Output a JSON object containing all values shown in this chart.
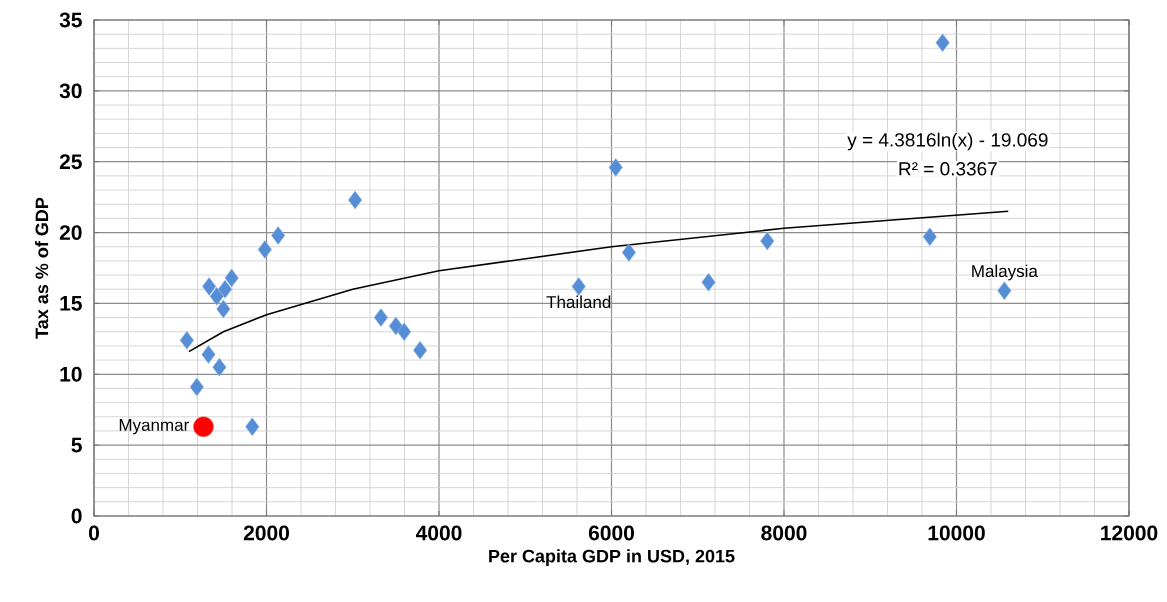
{
  "chart_data": {
    "type": "scatter",
    "xlabel": "Per Capita GDP in USD, 2015",
    "ylabel": "Tax as % of GDP",
    "xlim": [
      0,
      12000
    ],
    "ylim": [
      0,
      35
    ],
    "xticks": [
      0,
      2000,
      4000,
      6000,
      8000,
      10000,
      12000
    ],
    "yticks": [
      0,
      5,
      10,
      15,
      20,
      25,
      30,
      35
    ],
    "grid": true,
    "series": [
      {
        "marker": "diamond",
        "color": "#558ed5",
        "x": [
          3027,
          2135,
          1981,
          1596,
          1335,
          1519,
          1423,
          1500,
          1077,
          1327,
          1454,
          1192,
          1835,
          3327,
          3500,
          3596,
          3781,
          9839,
          6049,
          6202,
          7806,
          9691,
          5620,
          7125,
          10555
        ],
        "values": [
          22.3,
          19.8,
          18.8,
          16.8,
          16.2,
          16.0,
          15.5,
          14.6,
          12.4,
          11.4,
          10.5,
          9.1,
          6.3,
          14.0,
          13.4,
          13.0,
          11.7,
          33.4,
          24.6,
          18.6,
          19.4,
          19.7,
          16.2,
          16.5,
          15.9
        ]
      },
      {
        "marker": "circle",
        "color": "#ff0000",
        "x": [
          1269
        ],
        "values": [
          6.3
        ]
      },
      {
        "type": "line",
        "marker": "none",
        "color": "#000000",
        "line_style": "solid",
        "x": [
          1100,
          1500,
          2000,
          3000,
          4000,
          6000,
          8000,
          10600
        ],
        "values": [
          11.6,
          13.0,
          14.2,
          16.0,
          17.3,
          19.0,
          20.3,
          21.5
        ]
      }
    ],
    "annotations": [
      {
        "text": "Myanmar",
        "x": 1269,
        "y": 6.3
      },
      {
        "text": "Thailand",
        "x": 5620,
        "y": 16.2
      },
      {
        "text": "Malaysia",
        "x": 10555,
        "y": 15.9
      },
      "y = 4.3816ln(x) - 19.069",
      "R² = 0.3367"
    ]
  }
}
